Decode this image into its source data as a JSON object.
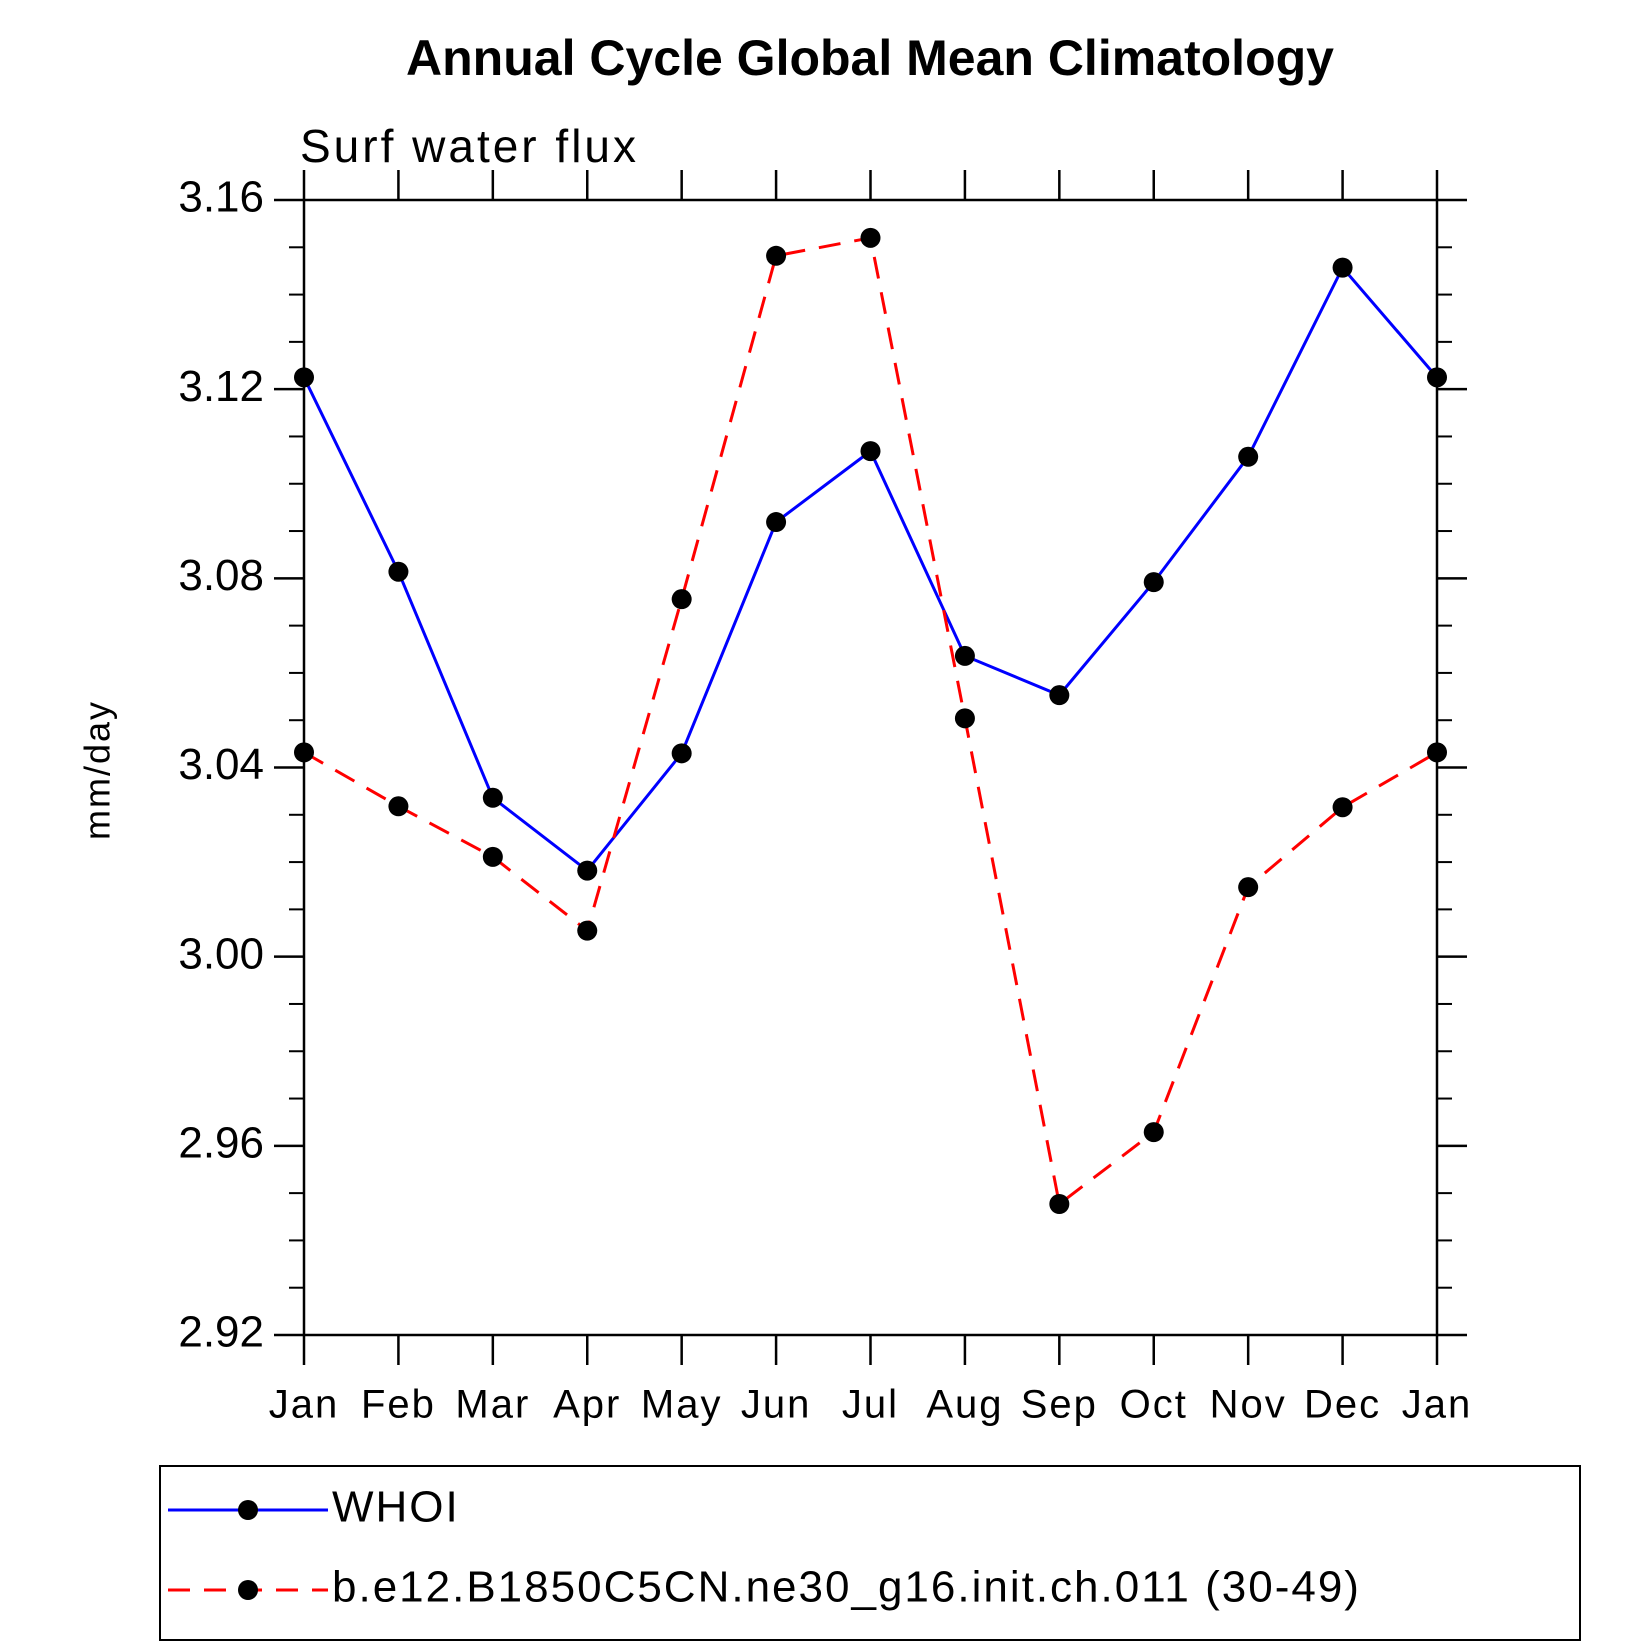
{
  "chart_data": {
    "type": "line",
    "title": "Annual Cycle Global Mean Climatology",
    "subtitle": "Surf water flux",
    "y_label": "mm/day",
    "categories": [
      "Jan",
      "Feb",
      "Mar",
      "Apr",
      "May",
      "Jun",
      "Jul",
      "Aug",
      "Sep",
      "Oct",
      "Nov",
      "Dec",
      "Jan"
    ],
    "series": [
      {
        "name": "WHOI",
        "color": "#0000ff",
        "linestyle": "solid",
        "values": [
          3.1225,
          3.0814,
          3.0336,
          3.0182,
          3.043,
          3.0919,
          3.1069,
          3.0636,
          3.0553,
          3.0792,
          3.1057,
          3.1457,
          3.1225
        ]
      },
      {
        "name": "b.e12.B1850C5CN.ne30_g16.init.ch.011 (30-49)",
        "color": "#ff0000",
        "linestyle": "dashed",
        "values": [
          3.0432,
          3.0318,
          3.0211,
          3.0055,
          3.0756,
          3.1482,
          3.152,
          3.0504,
          2.9477,
          2.9629,
          3.0147,
          3.0316,
          3.0432
        ]
      }
    ],
    "marker_color": "#000000",
    "ylim": [
      2.92,
      3.16
    ],
    "yticks": [
      2.92,
      2.96,
      {
        "value": 3,
        "label": "3.00"
      },
      3.04,
      3.08,
      3.12,
      3.16
    ]
  }
}
